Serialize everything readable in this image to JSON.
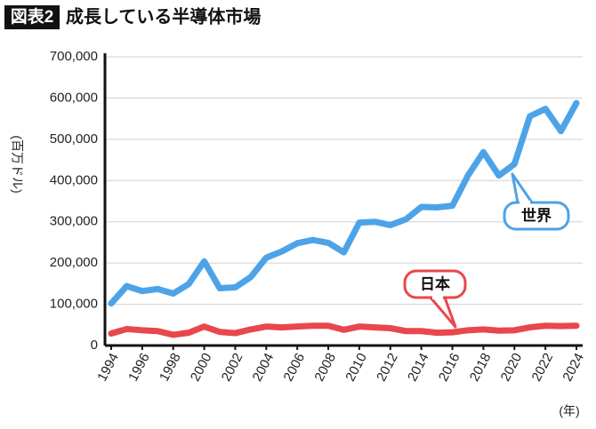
{
  "chart_data": {
    "type": "line",
    "figure_label": "図表2",
    "title": "成長している半導体市場",
    "y_label": "(百万ドル)",
    "x_label": "(年)",
    "x": [
      1994,
      1995,
      1996,
      1997,
      1998,
      1999,
      2000,
      2001,
      2002,
      2003,
      2004,
      2005,
      2006,
      2007,
      2008,
      2009,
      2010,
      2011,
      2012,
      2013,
      2014,
      2015,
      2016,
      2017,
      2018,
      2019,
      2020,
      2021,
      2022,
      2023,
      2024
    ],
    "series": [
      {
        "name": "世界",
        "color": "#4da3e8",
        "values": [
          102000,
          144000,
          132000,
          137000,
          126000,
          149000,
          204000,
          139000,
          141000,
          166000,
          213000,
          228000,
          248000,
          256000,
          249000,
          226000,
          298000,
          300000,
          292000,
          306000,
          336000,
          335000,
          339000,
          412000,
          469000,
          412000,
          440000,
          556000,
          574000,
          520000,
          588000
        ]
      },
      {
        "name": "日本",
        "color": "#e8474c",
        "values": [
          29000,
          40000,
          37000,
          35000,
          26000,
          31000,
          46000,
          33000,
          30000,
          39000,
          46000,
          44000,
          46000,
          48000,
          48000,
          38000,
          46000,
          44000,
          42000,
          35000,
          35000,
          31000,
          32000,
          37000,
          39000,
          36000,
          37000,
          44000,
          48000,
          47000,
          48000
        ]
      }
    ],
    "xlim": [
      1993.6,
      2024.4
    ],
    "xticks": [
      1994,
      1996,
      1998,
      2000,
      2002,
      2004,
      2006,
      2008,
      2010,
      2012,
      2014,
      2016,
      2018,
      2020,
      2022,
      2024
    ],
    "ylim": [
      0,
      700000
    ],
    "yticks": [
      {
        "value": 0,
        "label": "0"
      },
      {
        "value": 100000,
        "label": "100,000"
      },
      {
        "value": 200000,
        "label": "200,000"
      },
      {
        "value": 300000,
        "label": "300,000"
      },
      {
        "value": 400000,
        "label": "400,000"
      },
      {
        "value": 500000,
        "label": "500,000"
      },
      {
        "value": 600000,
        "label": "600,000"
      },
      {
        "value": 700000,
        "label": "700,000"
      }
    ],
    "grid": true
  }
}
